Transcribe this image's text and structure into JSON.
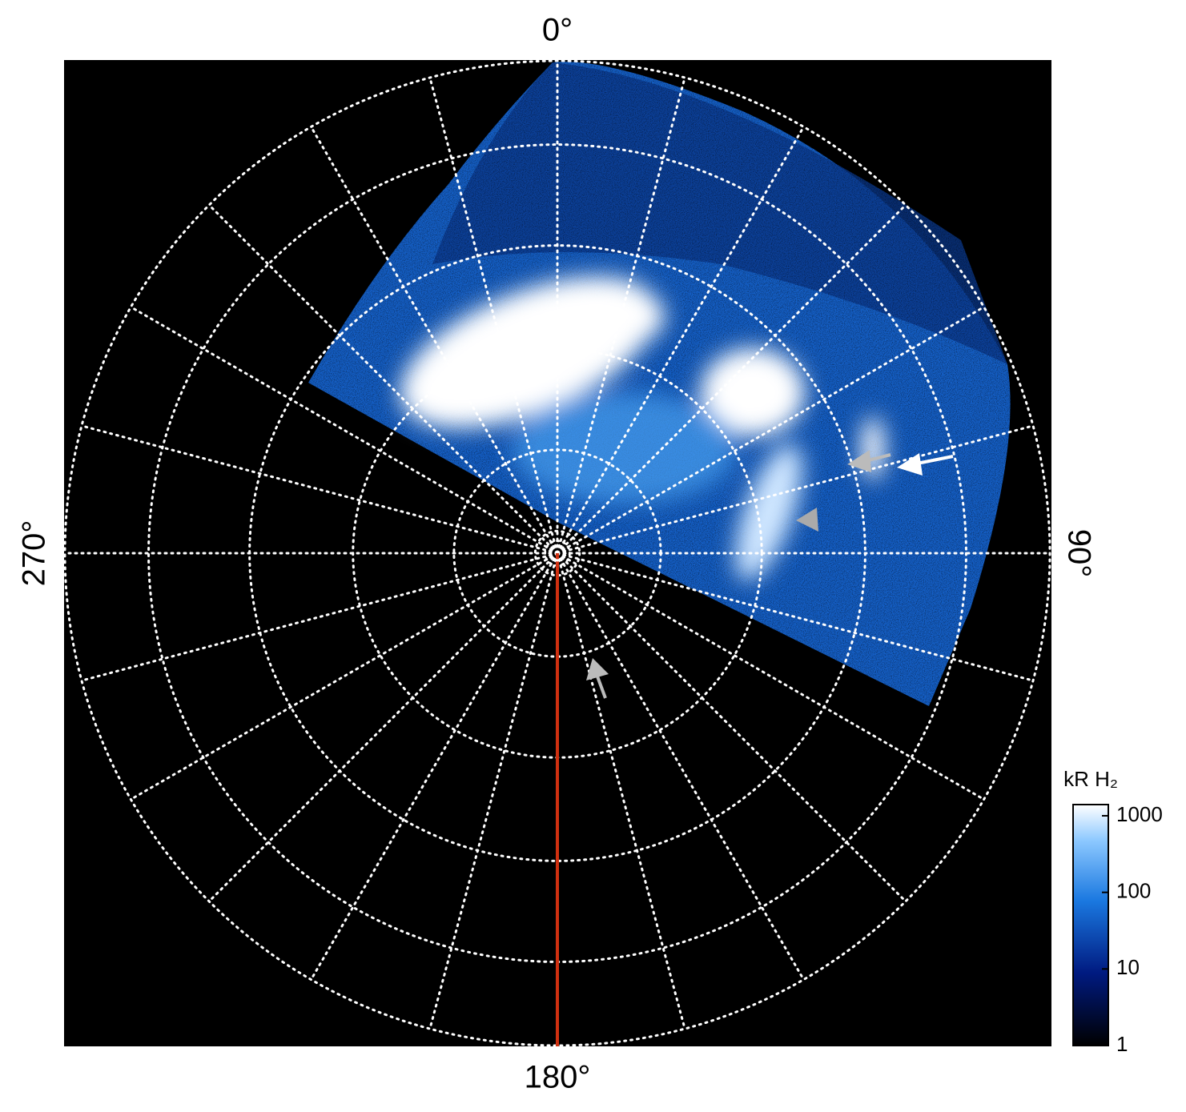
{
  "chart_data": {
    "type": "polar-image",
    "angle_labels": [
      "0°",
      "90°",
      "180°",
      "270°"
    ],
    "colorbar": {
      "title": "kR H₂",
      "scale": "log",
      "lim": [
        1,
        1400
      ],
      "ticks": [
        1,
        10,
        100,
        1000
      ]
    }
  }
}
